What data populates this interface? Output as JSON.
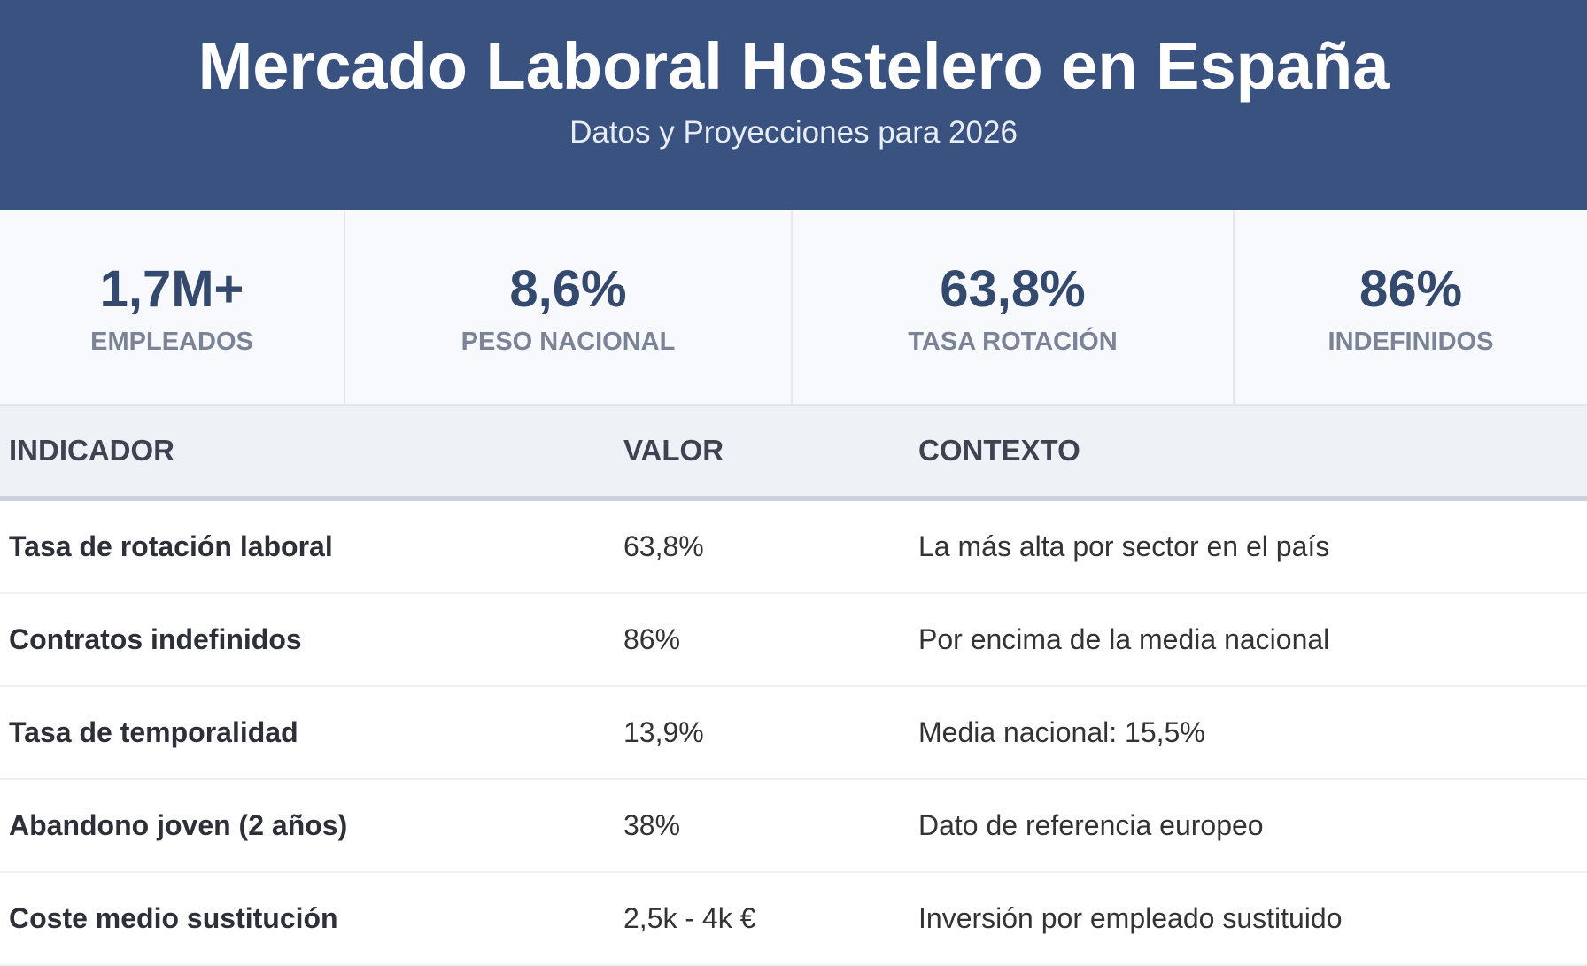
{
  "header": {
    "title": "Mercado Laboral Hostelero en España",
    "subtitle": "Datos y Proyecciones para 2026"
  },
  "stats": [
    {
      "value": "1,7M+",
      "label": "EMPLEADOS"
    },
    {
      "value": "8,6%",
      "label": "PESO NACIONAL"
    },
    {
      "value": "63,8%",
      "label": "TASA ROTACIÓN"
    },
    {
      "value": "86%",
      "label": "INDEFINIDOS"
    }
  ],
  "table": {
    "columns": [
      "INDICADOR",
      "VALOR",
      "CONTEXTO"
    ],
    "rows": [
      [
        "Tasa de rotación laboral",
        "63,8%",
        "La más alta por sector en el país"
      ],
      [
        "Contratos indefinidos",
        "86%",
        "Por encima de la media nacional"
      ],
      [
        "Tasa de temporalidad",
        "13,9%",
        "Media nacional: 15,5%"
      ],
      [
        "Abandono joven (2 años)",
        "38%",
        "Dato de referencia europeo"
      ],
      [
        "Coste medio sustitución",
        "2,5k - 4k €",
        "Inversión por empleado sustituido"
      ]
    ]
  }
}
